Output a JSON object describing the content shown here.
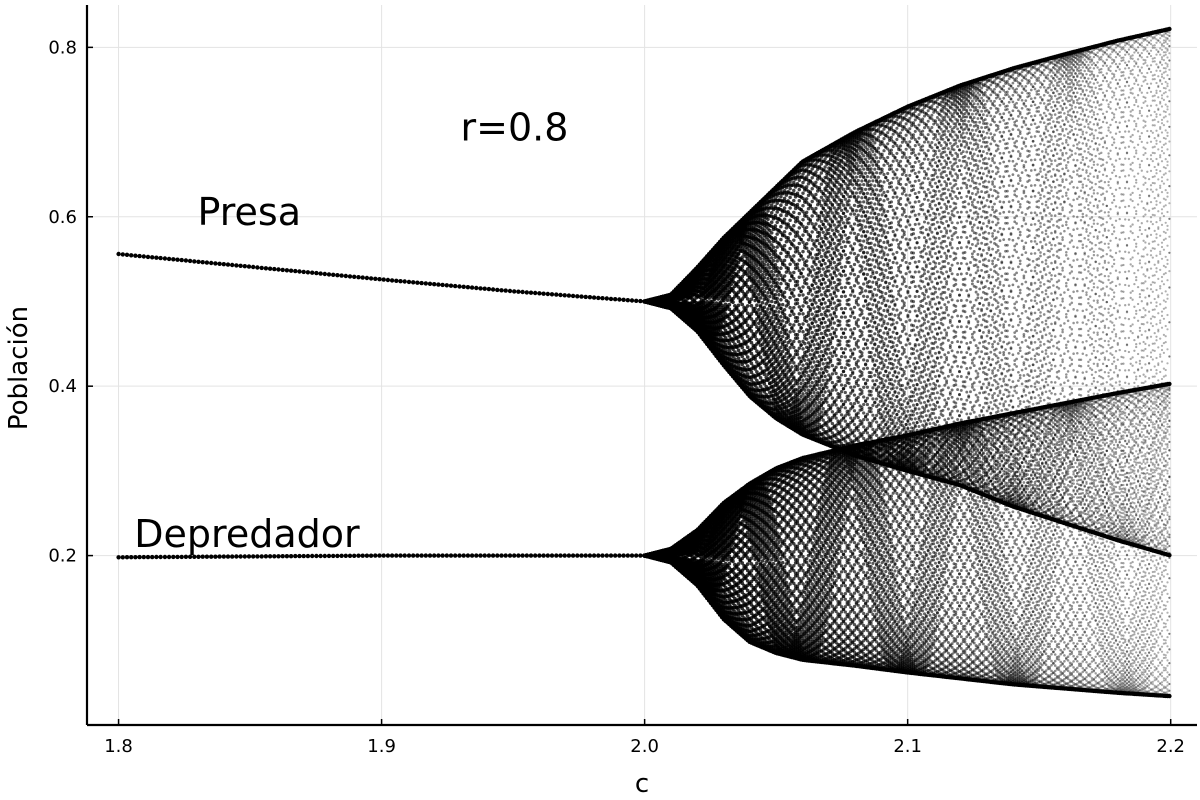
{
  "chart_data": {
    "type": "scatter",
    "xlabel": "c",
    "ylabel": "Población",
    "xlim": [
      1.788,
      2.21
    ],
    "ylim": [
      0.0,
      0.85
    ],
    "grid": true,
    "x_ticks": [
      {
        "value": 1.8,
        "label": "1.8"
      },
      {
        "value": 1.9,
        "label": "1.9"
      },
      {
        "value": 2.0,
        "label": "2.0"
      },
      {
        "value": 2.1,
        "label": "2.1"
      },
      {
        "value": 2.2,
        "label": "2.2"
      }
    ],
    "y_ticks": [
      {
        "value": 0.2,
        "label": "0.2"
      },
      {
        "value": 0.4,
        "label": "0.4"
      },
      {
        "value": 0.6,
        "label": "0.6"
      },
      {
        "value": 0.8,
        "label": "0.8"
      }
    ],
    "annotations": [
      {
        "text": "r=0.8",
        "x": 1.93,
        "y": 0.69
      },
      {
        "text": "Presa",
        "x": 1.83,
        "y": 0.59
      },
      {
        "text": "Depredador",
        "x": 1.806,
        "y": 0.21
      }
    ],
    "series": [
      {
        "color": "#000000",
        "x": [
          1.8,
          1.85,
          1.9,
          1.95,
          2.0,
          2.01,
          2.02,
          2.03,
          2.04,
          2.05,
          2.06,
          2.08,
          2.1,
          2.12,
          2.14,
          2.16,
          2.18,
          2.2
        ],
        "y_min": [
          0.556,
          0.541,
          0.526,
          0.512,
          0.5,
          0.492,
          0.465,
          0.425,
          0.388,
          0.362,
          0.343,
          0.318,
          0.3,
          0.283,
          0.258,
          0.238,
          0.218,
          0.2
        ],
        "y_max": [
          0.556,
          0.541,
          0.526,
          0.512,
          0.5,
          0.508,
          0.54,
          0.575,
          0.605,
          0.635,
          0.665,
          0.7,
          0.73,
          0.755,
          0.775,
          0.792,
          0.808,
          0.822
        ]
      },
      {
        "color": "#000000",
        "x": [
          1.8,
          1.85,
          1.9,
          1.95,
          2.0,
          2.01,
          2.02,
          2.03,
          2.04,
          2.05,
          2.06,
          2.08,
          2.1,
          2.12,
          2.14,
          2.16,
          2.18,
          2.2
        ],
        "y_min": [
          0.198,
          0.199,
          0.2,
          0.2,
          0.2,
          0.192,
          0.165,
          0.125,
          0.098,
          0.085,
          0.077,
          0.07,
          0.062,
          0.055,
          0.048,
          0.043,
          0.038,
          0.034
        ],
        "y_max": [
          0.198,
          0.199,
          0.2,
          0.2,
          0.2,
          0.208,
          0.23,
          0.262,
          0.285,
          0.303,
          0.315,
          0.33,
          0.342,
          0.356,
          0.368,
          0.38,
          0.392,
          0.403
        ]
      }
    ]
  }
}
